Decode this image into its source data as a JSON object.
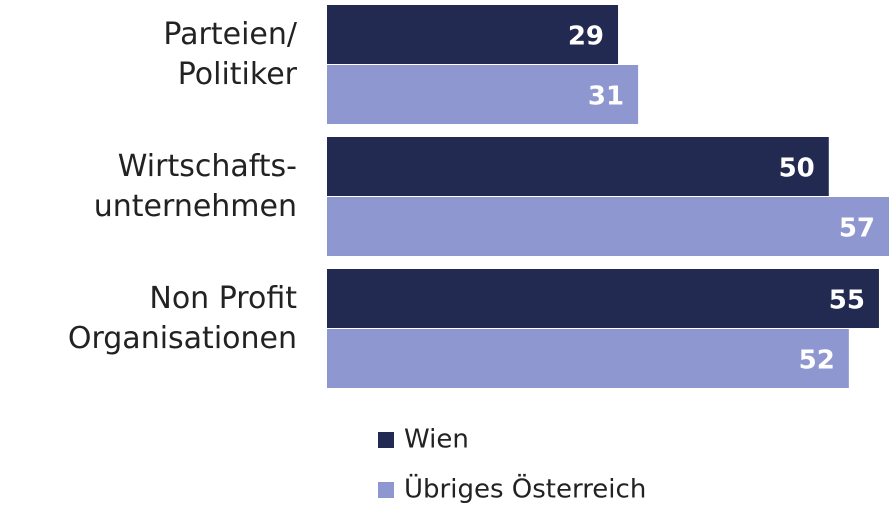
{
  "chart_data": {
    "type": "bar",
    "orientation": "horizontal",
    "categories": [
      "Parteien/\nPolitiker",
      "Wirtschafts-\nunternehmen",
      "Non Profit\nOrganisationen"
    ],
    "series": [
      {
        "name": "Wien",
        "color": "#232a52",
        "values": [
          29,
          50,
          55
        ]
      },
      {
        "name": "Übriges Österreich",
        "color": "#8e97d0",
        "values": [
          31,
          57,
          52
        ]
      }
    ],
    "xlim": [
      0,
      56
    ]
  }
}
